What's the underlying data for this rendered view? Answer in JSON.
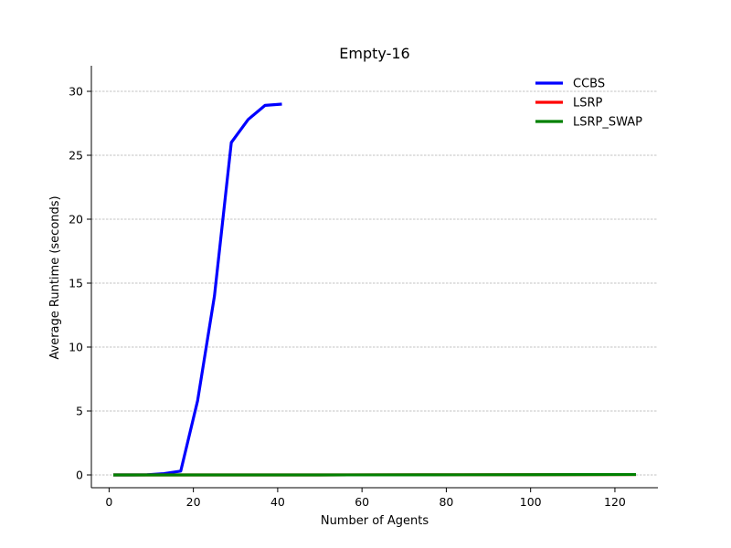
{
  "chart_data": {
    "type": "line",
    "title": "Empty-16",
    "xlabel": "Number of Agents",
    "ylabel": "Average Runtime (seconds)",
    "xlim": [
      -4.2,
      130.2
    ],
    "ylim": [
      -1.0,
      32.0
    ],
    "xticks": [
      0,
      20,
      40,
      60,
      80,
      100,
      120
    ],
    "yticks": [
      0,
      5,
      10,
      15,
      20,
      25,
      30
    ],
    "grid": "horizontal dashed",
    "legend_position": "top-right",
    "series": [
      {
        "name": "CCBS",
        "color": "#0000ff",
        "x": [
          1,
          5,
          9,
          13,
          17,
          21,
          25,
          29,
          33,
          37,
          41
        ],
        "y": [
          0.0,
          0.0,
          0.01,
          0.1,
          0.3,
          5.8,
          14.0,
          26.0,
          27.8,
          28.9,
          29.0
        ]
      },
      {
        "name": "LSRP",
        "color": "#ff0000",
        "x": [
          1,
          25,
          50,
          75,
          100,
          125
        ],
        "y": [
          0.0,
          0.0,
          0.0,
          0.01,
          0.02,
          0.03
        ]
      },
      {
        "name": "LSRP_SWAP",
        "color": "#008000",
        "x": [
          1,
          25,
          50,
          75,
          100,
          125
        ],
        "y": [
          0.0,
          0.0,
          0.0,
          0.01,
          0.02,
          0.03
        ]
      }
    ]
  }
}
